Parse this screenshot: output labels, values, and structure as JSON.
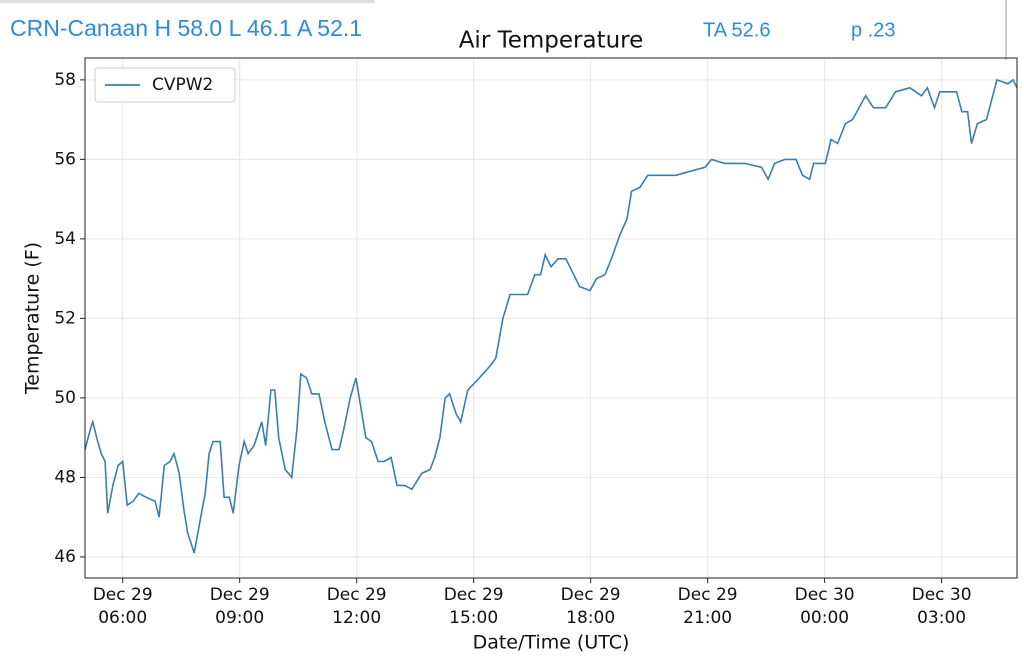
{
  "header": {
    "station": "CRN-Canaan H 58.0 L 46.1 A 52.1",
    "ta": "TA 52.6",
    "p": "p .23"
  },
  "chart_data": {
    "type": "line",
    "title": "Air Temperature",
    "x_label": "Date/Time (UTC)",
    "y_label": "Temperature (F)",
    "legend": "upper left",
    "grid": true,
    "x": [
      "Dec 29 05:02",
      "Dec 29 05:10",
      "Dec 29 05:14",
      "Dec 29 05:20",
      "Dec 29 05:27",
      "Dec 29 05:33",
      "Dec 29 05:37",
      "Dec 29 05:45",
      "Dec 29 05:53",
      "Dec 29 06:00",
      "Dec 29 06:07",
      "Dec 29 06:16",
      "Dec 29 06:25",
      "Dec 29 06:36",
      "Dec 29 06:50",
      "Dec 29 06:56",
      "Dec 29 07:04",
      "Dec 29 07:13",
      "Dec 29 07:19",
      "Dec 29 07:27",
      "Dec 29 07:34",
      "Dec 29 07:40",
      "Dec 29 07:50",
      "Dec 29 07:59",
      "Dec 29 08:07",
      "Dec 29 08:13",
      "Dec 29 08:19",
      "Dec 29 08:30",
      "Dec 29 08:36",
      "Dec 29 08:44",
      "Dec 29 08:50",
      "Dec 29 08:59",
      "Dec 29 09:07",
      "Dec 29 09:13",
      "Dec 29 09:22",
      "Dec 29 09:34",
      "Dec 29 09:40",
      "Dec 29 09:48",
      "Dec 29 09:54",
      "Dec 29 10:00",
      "Dec 29 10:10",
      "Dec 29 10:20",
      "Dec 29 10:28",
      "Dec 29 10:34",
      "Dec 29 10:43",
      "Dec 29 10:51",
      "Dec 29 11:02",
      "Dec 29 11:11",
      "Dec 29 11:22",
      "Dec 29 11:33",
      "Dec 29 11:40",
      "Dec 29 11:50",
      "Dec 29 11:59",
      "Dec 29 12:06",
      "Dec 29 12:14",
      "Dec 29 12:23",
      "Dec 29 12:33",
      "Dec 29 12:42",
      "Dec 29 12:53",
      "Dec 29 13:02",
      "Dec 29 13:14",
      "Dec 29 13:25",
      "Dec 29 13:40",
      "Dec 29 13:53",
      "Dec 29 14:00",
      "Dec 29 14:08",
      "Dec 29 14:16",
      "Dec 29 14:23",
      "Dec 29 14:33",
      "Dec 29 14:40",
      "Dec 29 14:51",
      "Dec 29 15:03",
      "Dec 29 15:14",
      "Dec 29 15:25",
      "Dec 29 15:34",
      "Dec 29 15:45",
      "Dec 29 15:56",
      "Dec 29 16:11",
      "Dec 29 16:23",
      "Dec 29 16:34",
      "Dec 29 16:43",
      "Dec 29 16:50",
      "Dec 29 16:59",
      "Dec 29 17:10",
      "Dec 29 17:22",
      "Dec 29 17:31",
      "Dec 29 17:43",
      "Dec 29 17:59",
      "Dec 29 18:09",
      "Dec 29 18:22",
      "Dec 29 18:32",
      "Dec 29 18:45",
      "Dec 29 18:56",
      "Dec 29 19:03",
      "Dec 29 19:16",
      "Dec 29 19:28",
      "Dec 29 19:47",
      "Dec 29 20:11",
      "Dec 29 20:33",
      "Dec 29 20:56",
      "Dec 29 21:06",
      "Dec 29 21:26",
      "Dec 29 21:57",
      "Dec 29 22:23",
      "Dec 29 22:33",
      "Dec 29 22:43",
      "Dec 29 22:59",
      "Dec 29 23:16",
      "Dec 29 23:26",
      "Dec 29 23:37",
      "Dec 29 23:43",
      "Dec 30 00:01",
      "Dec 30 00:10",
      "Dec 30 00:20",
      "Dec 30 00:32",
      "Dec 30 00:43",
      "Dec 30 01:03",
      "Dec 30 01:15",
      "Dec 30 01:34",
      "Dec 30 01:49",
      "Dec 30 02:11",
      "Dec 30 02:29",
      "Dec 30 02:38",
      "Dec 30 02:49",
      "Dec 30 02:57",
      "Dec 30 03:23",
      "Dec 30 03:31",
      "Dec 30 03:40",
      "Dec 30 03:46",
      "Dec 30 03:55",
      "Dec 30 04:09",
      "Dec 30 04:25",
      "Dec 30 04:42",
      "Dec 30 04:50",
      "Dec 30 04:56"
    ],
    "series": [
      {
        "name": "CVPW2",
        "color": "#3b7ea8",
        "values": [
          48.7,
          49.2,
          49.4,
          49.0,
          48.6,
          48.4,
          47.1,
          47.8,
          48.3,
          48.4,
          47.3,
          47.4,
          47.6,
          47.5,
          47.4,
          47.0,
          48.3,
          48.4,
          48.6,
          48.1,
          47.2,
          46.6,
          46.1,
          46.9,
          47.6,
          48.6,
          48.9,
          48.9,
          47.5,
          47.5,
          47.1,
          48.3,
          48.9,
          48.6,
          48.8,
          49.4,
          48.8,
          50.2,
          50.2,
          49.0,
          48.2,
          48.0,
          49.2,
          50.6,
          50.5,
          50.1,
          50.1,
          49.4,
          48.7,
          48.7,
          49.2,
          50.0,
          50.5,
          49.8,
          49.0,
          48.9,
          48.4,
          48.4,
          48.5,
          47.8,
          47.8,
          47.7,
          48.1,
          48.2,
          48.5,
          49.0,
          50.0,
          50.1,
          49.6,
          49.4,
          50.2,
          50.4,
          50.6,
          50.8,
          51.0,
          52.0,
          52.6,
          52.6,
          52.6,
          53.1,
          53.1,
          53.6,
          53.3,
          53.5,
          53.5,
          53.2,
          52.8,
          52.7,
          53.0,
          53.1,
          53.5,
          54.1,
          54.5,
          55.2,
          55.3,
          55.6,
          55.6,
          55.6,
          55.7,
          55.8,
          56.0,
          55.9,
          55.9,
          55.8,
          55.5,
          55.9,
          56.0,
          56.0,
          55.6,
          55.5,
          55.9,
          55.9,
          56.5,
          56.4,
          56.9,
          57.0,
          57.6,
          57.3,
          57.3,
          57.7,
          57.8,
          57.6,
          57.8,
          57.3,
          57.7,
          57.7,
          57.2,
          57.2,
          56.4,
          56.9,
          57.0,
          58.0,
          57.9,
          58.0,
          57.8
        ]
      }
    ],
    "xlim": [
      "Dec 29 05:02",
      "Dec 30 04:56"
    ],
    "xticks": [
      {
        "value": "Dec 29 06:00",
        "label": [
          "Dec 29",
          "06:00"
        ]
      },
      {
        "value": "Dec 29 09:00",
        "label": [
          "Dec 29",
          "09:00"
        ]
      },
      {
        "value": "Dec 29 12:00",
        "label": [
          "Dec 29",
          "12:00"
        ]
      },
      {
        "value": "Dec 29 15:00",
        "label": [
          "Dec 29",
          "15:00"
        ]
      },
      {
        "value": "Dec 29 18:00",
        "label": [
          "Dec 29",
          "18:00"
        ]
      },
      {
        "value": "Dec 29 21:00",
        "label": [
          "Dec 29",
          "21:00"
        ]
      },
      {
        "value": "Dec 30 00:00",
        "label": [
          "Dec 30",
          "00:00"
        ]
      },
      {
        "value": "Dec 30 03:00",
        "label": [
          "Dec 30",
          "03:00"
        ]
      }
    ],
    "ylim": [
      45.47,
      58.55
    ],
    "yticks": [
      46,
      48,
      50,
      52,
      54,
      56,
      58
    ]
  }
}
